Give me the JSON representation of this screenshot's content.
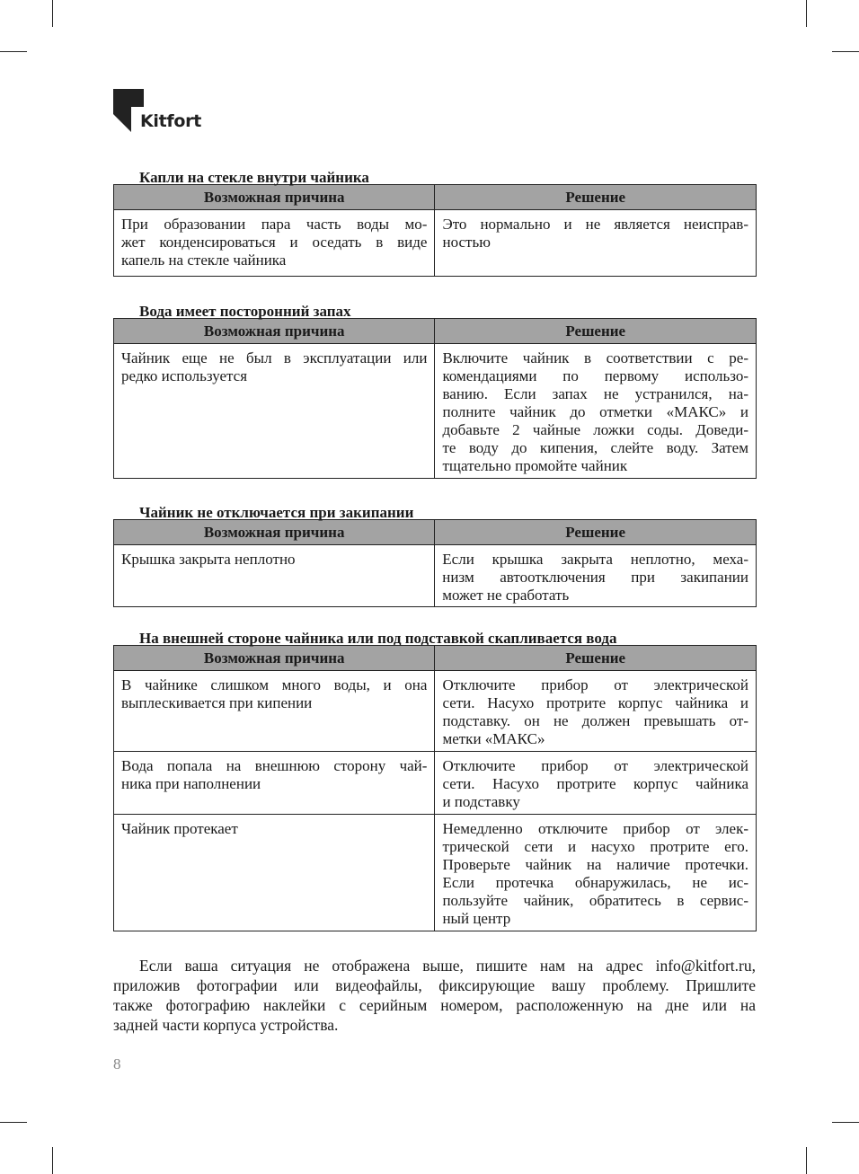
{
  "brand": {
    "name": "Kitfort"
  },
  "sections": [
    {
      "title": "Капли на стекле внутри чайника",
      "headers": [
        "Возможная причина",
        "Решение"
      ],
      "rows": [
        {
          "cause": [
            "При образовании пара часть воды мо-",
            "жет конденсироваться и оседать в виде",
            "капель на стекле чайника"
          ],
          "solution": [
            "Это нормально и не является неисправ-",
            "ностью"
          ],
          "height": 74
        }
      ]
    },
    {
      "title": "Вода имеет посторонний запах",
      "headers": [
        "Возможная причина",
        "Решение"
      ],
      "rows": [
        {
          "cause": [
            "Чайник еще не был в эксплуатации или",
            "редко используется"
          ],
          "solution": [
            "Включите чайник в соответствии с ре-",
            "комендациями по первому использо-",
            "ванию. Если запах не устранился, на-",
            "полните чайник до отметки «МАКС» и",
            "добавьте 2 чайные ложки соды. Доведи-",
            "те воду до кипения, слейте воду. Затем",
            "тщательно промойте чайник"
          ],
          "height": 150
        }
      ]
    },
    {
      "title": "Чайник не отключается при закипании",
      "headers": [
        "Возможная причина",
        "Решение"
      ],
      "rows": [
        {
          "cause": [
            "Крышка закрыта неплотно"
          ],
          "solution": [
            "Если крышка закрыта неплотно, меха-",
            "низм автоотключения при закипании",
            "может не сработать"
          ],
          "height": 65
        }
      ]
    },
    {
      "title": "На внешней стороне чайника или под подставкой скапливается вода",
      "headers": [
        "Возможная причина",
        "Решение"
      ],
      "rows": [
        {
          "cause": [
            "В чайнике слишком много воды, и она",
            "выплескивается при кипении"
          ],
          "solution": [
            "Отключите прибор от электрической",
            "сети. Насухо протрите корпус чайника и",
            "подставку. он не должен превышать от-",
            "метки «МАКС»"
          ],
          "height": 90
        },
        {
          "cause": [
            "Вода попала на внешнюю сторону чай-",
            "ника при наполнении"
          ],
          "solution": [
            "Отключите прибор от электрической",
            "сети. Насухо протрите корпус чайника",
            "и подставку"
          ],
          "height": 70
        },
        {
          "cause": [
            "Чайник протекает"
          ],
          "solution": [
            "Немедленно отключите прибор от элек-",
            "трической сети и насухо протрите его.",
            "Проверьте чайник на наличие протечки.",
            "Если протечка обнаружилась, не ис-",
            "пользуйте чайник, обратитесь в сервис-",
            "ный центр"
          ],
          "height": 130
        }
      ]
    }
  ],
  "footer_paragraph": [
    "Если ваша ситуация не отображена выше, пишите нам на адрес info@kitfort.ru,",
    "приложив фотографии или видеофайлы, фиксирующие вашу проблему. Пришлите",
    "также фотографию наклейки с серийным номером, расположенную на дне или на",
    "задней части корпуса устройства."
  ],
  "page_number": "8",
  "colors": {
    "header_bg": "#a3a3a3",
    "text": "#1a1a1a",
    "page_number": "#888888"
  }
}
